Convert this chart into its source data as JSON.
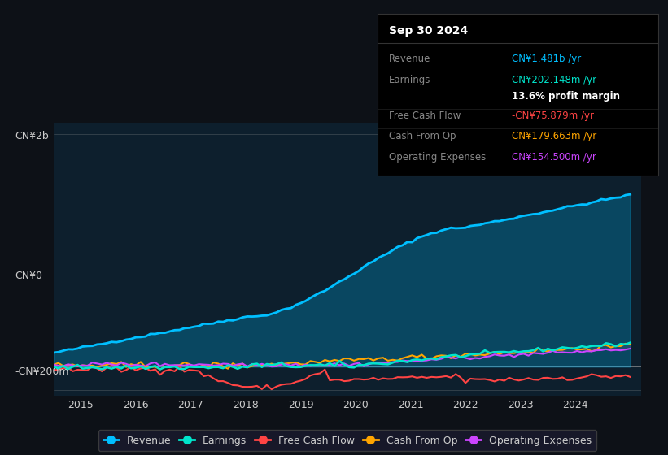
{
  "background_color": "#0d1117",
  "plot_bg_color": "#0d1f2d",
  "title_box": {
    "date": "Sep 30 2024",
    "rows": [
      {
        "label": "Revenue",
        "value": "CN¥1.481b /yr",
        "value_color": "#00bfff"
      },
      {
        "label": "Earnings",
        "value": "CN¥202.148m /yr",
        "value_color": "#00e5cc"
      },
      {
        "label": "",
        "value": "13.6% profit margin",
        "value_color": "#ffffff"
      },
      {
        "label": "Free Cash Flow",
        "value": "-CN¥75.879m /yr",
        "value_color": "#ff4444"
      },
      {
        "label": "Cash From Op",
        "value": "CN¥179.663m /yr",
        "value_color": "#ffa500"
      },
      {
        "label": "Operating Expenses",
        "value": "CN¥154.500m /yr",
        "value_color": "#cc44ff"
      }
    ]
  },
  "ylabel_top": "CN¥2b",
  "ylabel_zero": "CN¥0",
  "ylabel_neg": "-CN¥200m",
  "ylim": [
    -250000000,
    2100000000
  ],
  "yticks": [
    -200000000,
    0,
    2000000000
  ],
  "ytick_labels": [
    "-CN¥200m",
    "CN¥0",
    "CN¥2b"
  ],
  "xticks": [
    2015,
    2016,
    2017,
    2018,
    2019,
    2020,
    2021,
    2022,
    2023,
    2024
  ],
  "series": {
    "Revenue": {
      "color": "#00bfff",
      "fill": true,
      "fill_alpha": 0.3,
      "linewidth": 2.0,
      "zorder": 5
    },
    "Earnings": {
      "color": "#00e5cc",
      "fill": false,
      "linewidth": 1.8,
      "zorder": 4
    },
    "Free Cash Flow": {
      "color": "#ff4444",
      "fill": false,
      "linewidth": 1.5,
      "zorder": 3
    },
    "Cash From Op": {
      "color": "#ffa500",
      "fill": false,
      "linewidth": 1.5,
      "zorder": 3
    },
    "Operating Expenses": {
      "color": "#cc44ff",
      "fill": false,
      "linewidth": 1.5,
      "zorder": 3
    }
  },
  "legend_entries": [
    {
      "label": "Revenue",
      "color": "#00bfff"
    },
    {
      "label": "Earnings",
      "color": "#00e5cc"
    },
    {
      "label": "Free Cash Flow",
      "color": "#ff4444"
    },
    {
      "label": "Cash From Op",
      "color": "#ffa500"
    },
    {
      "label": "Operating Expenses",
      "color": "#cc44ff"
    }
  ]
}
